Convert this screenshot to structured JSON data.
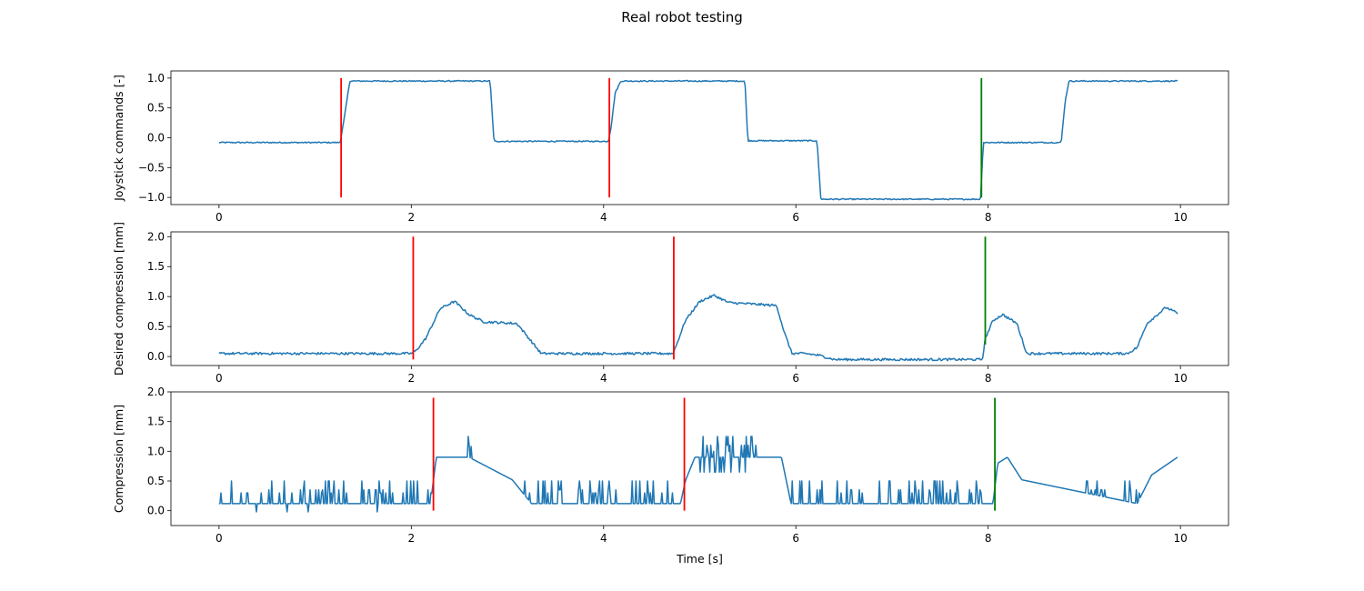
{
  "figure": {
    "title": "Real robot testing"
  },
  "chart_data": [
    {
      "type": "line",
      "ylabel": "Joystick commands [-]",
      "xlabel": "",
      "xlim": [
        -0.5,
        10.5
      ],
      "ylim": [
        -1.12,
        1.12
      ],
      "xticks": [
        0,
        2,
        4,
        6,
        8,
        10
      ],
      "yticks": [
        -1.0,
        -0.5,
        0.0,
        0.5,
        1.0
      ],
      "ytick_labels": [
        "−1.0",
        "−0.5",
        "0.0",
        "0.5",
        "1.0"
      ],
      "xtick_labels": [
        "0",
        "2",
        "4",
        "6",
        "8",
        "10"
      ],
      "grid": false,
      "series": [
        {
          "color": "#1f77b4",
          "noise": 0.01,
          "x": [
            0,
            1.26,
            1.3,
            1.36,
            2.82,
            2.86,
            4.05,
            4.08,
            4.12,
            4.18,
            5.47,
            5.5,
            6.22,
            6.26,
            7.92,
            7.95,
            8.76,
            8.8,
            8.84,
            9.97
          ],
          "y": [
            -0.08,
            -0.08,
            0.3,
            0.95,
            0.95,
            -0.06,
            -0.06,
            0.2,
            0.75,
            0.95,
            0.95,
            -0.05,
            -0.05,
            -1.03,
            -1.03,
            -0.08,
            -0.08,
            0.6,
            0.95,
            0.95
          ]
        }
      ],
      "vlines": [
        {
          "x": 1.27,
          "y0": -1.0,
          "y1": 1.0,
          "color": "#ff0000"
        },
        {
          "x": 4.06,
          "y0": -1.0,
          "y1": 1.0,
          "color": "#ff0000"
        },
        {
          "x": 7.93,
          "y0": -1.0,
          "y1": 1.0,
          "color": "#008000"
        }
      ]
    },
    {
      "type": "line",
      "ylabel": "Desired compression [mm]",
      "xlabel": "",
      "xlim": [
        -0.5,
        10.5
      ],
      "ylim": [
        -0.15,
        2.08
      ],
      "xticks": [
        0,
        2,
        4,
        6,
        8,
        10
      ],
      "yticks": [
        0.0,
        0.5,
        1.0,
        1.5,
        2.0
      ],
      "ytick_labels": [
        "0.0",
        "0.5",
        "1.0",
        "1.5",
        "2.0"
      ],
      "xtick_labels": [
        "0",
        "2",
        "4",
        "6",
        "8",
        "10"
      ],
      "grid": false,
      "series": [
        {
          "color": "#1f77b4",
          "noise": 0.02,
          "x": [
            0,
            2.0,
            2.05,
            2.15,
            2.3,
            2.45,
            2.6,
            2.75,
            3.1,
            3.2,
            3.35,
            4.72,
            4.76,
            4.85,
            5.0,
            5.15,
            5.3,
            5.8,
            5.88,
            5.96,
            6.1,
            6.24,
            6.4,
            7.94,
            7.97,
            8.05,
            8.15,
            8.3,
            8.4,
            9.45,
            9.55,
            9.65,
            9.85,
            9.97
          ],
          "y": [
            0.05,
            0.05,
            0.1,
            0.3,
            0.8,
            0.92,
            0.7,
            0.58,
            0.55,
            0.35,
            0.05,
            0.05,
            0.2,
            0.6,
            0.92,
            1.02,
            0.9,
            0.85,
            0.4,
            0.05,
            0.05,
            0.02,
            -0.05,
            -0.05,
            0.3,
            0.6,
            0.7,
            0.55,
            0.05,
            0.05,
            0.15,
            0.55,
            0.82,
            0.72
          ]
        }
      ],
      "vlines": [
        {
          "x": 2.02,
          "y0": -0.05,
          "y1": 2.0,
          "color": "#ff0000"
        },
        {
          "x": 4.73,
          "y0": -0.05,
          "y1": 2.0,
          "color": "#ff0000"
        },
        {
          "x": 7.97,
          "y0": 0.2,
          "y1": 2.0,
          "color": "#008000"
        }
      ]
    },
    {
      "type": "line",
      "ylabel": "Compression [mm]",
      "xlabel": "Time [s]",
      "xlim": [
        -0.5,
        10.5
      ],
      "ylim": [
        -0.25,
        2.0
      ],
      "xticks": [
        0,
        2,
        4,
        6,
        8,
        10
      ],
      "yticks": [
        0.0,
        0.5,
        1.0,
        1.5,
        2.0
      ],
      "ytick_labels": [
        "0.0",
        "0.5",
        "1.0",
        "1.5",
        "2.0"
      ],
      "xtick_labels": [
        "0",
        "2",
        "4",
        "6",
        "8",
        "10"
      ],
      "grid": false,
      "series": [
        {
          "color": "#1f77b4",
          "noise": 0,
          "x": [
            0,
            2.2,
            2.26,
            2.4,
            2.6,
            3.05,
            3.25,
            4.8,
            4.85,
            4.95,
            5.85,
            5.95,
            8.05,
            8.1,
            8.2,
            8.35,
            9.55,
            9.7,
            9.97
          ],
          "y": [
            0.12,
            0.12,
            0.9,
            0.9,
            0.9,
            0.52,
            0.12,
            0.12,
            0.5,
            0.9,
            0.9,
            0.12,
            0.12,
            0.8,
            0.9,
            0.52,
            0.12,
            0.6,
            0.9
          ]
        }
      ],
      "vlines": [
        {
          "x": 2.23,
          "y0": 0.0,
          "y1": 1.9,
          "color": "#ff0000"
        },
        {
          "x": 4.84,
          "y0": 0.0,
          "y1": 1.9,
          "color": "#ff0000"
        },
        {
          "x": 8.07,
          "y0": 0.0,
          "y1": 1.9,
          "color": "#008000"
        }
      ]
    }
  ]
}
